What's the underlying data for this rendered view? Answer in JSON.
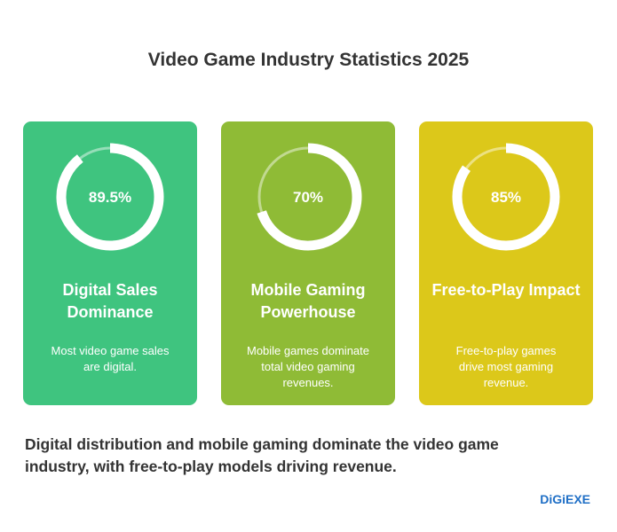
{
  "chart_data": {
    "type": "gauge",
    "title": "Video Game Industry Statistics 2025",
    "categories": [
      "Digital Sales Dominance",
      "Mobile Gaming Powerhouse",
      "Free-to-Play Impact"
    ],
    "values": [
      89.5,
      70,
      85
    ],
    "value_labels": [
      "89.5%",
      "70%",
      "85%"
    ],
    "max": 100,
    "descriptions": [
      "Most video game sales are digital.",
      "Mobile games dominate total video gaming revenues.",
      "Free-to-play games drive most gaming revenue."
    ],
    "colors": [
      "#3fc47f",
      "#8fbb36",
      "#dcc81a"
    ],
    "summary": "Digital distribution and mobile gaming dominate the video game industry, with free-to-play models driving revenue.",
    "brand": "DiGiEXE"
  }
}
